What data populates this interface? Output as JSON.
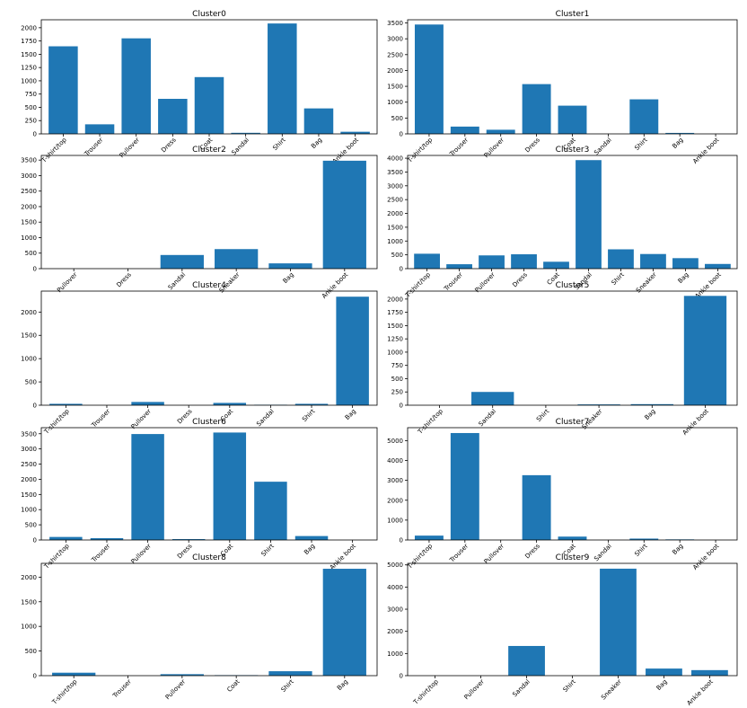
{
  "colors": {
    "bar": "#1f77b4"
  },
  "chart_data": [
    {
      "type": "bar",
      "title": "Cluster0",
      "categories": [
        "T-shirt/top",
        "Trouser",
        "Pullover",
        "Dress",
        "Coat",
        "Sandal",
        "Shirt",
        "Bag",
        "Ankle boot"
      ],
      "values": [
        1650,
        180,
        1800,
        660,
        1070,
        20,
        2080,
        480,
        40
      ],
      "ylim": [
        0,
        2150
      ],
      "yticks": [
        0,
        250,
        500,
        750,
        1000,
        1250,
        1500,
        1750,
        2000
      ]
    },
    {
      "type": "bar",
      "title": "Cluster1",
      "categories": [
        "T-shirt/top",
        "Trouser",
        "Pullover",
        "Dress",
        "Coat",
        "Sandal",
        "Shirt",
        "Bag",
        "Ankle boot"
      ],
      "values": [
        3450,
        230,
        130,
        1570,
        890,
        0,
        1090,
        30,
        0
      ],
      "ylim": [
        0,
        3600
      ],
      "yticks": [
        0,
        500,
        1000,
        1500,
        2000,
        2500,
        3000,
        3500
      ]
    },
    {
      "type": "bar",
      "title": "Cluster2",
      "categories": [
        "Pullover",
        "Dress",
        "Sandal",
        "Sneaker",
        "Bag",
        "Ankle boot"
      ],
      "values": [
        0,
        0,
        440,
        630,
        170,
        3480
      ],
      "ylim": [
        0,
        3650
      ],
      "yticks": [
        0,
        500,
        1000,
        1500,
        2000,
        2500,
        3000,
        3500
      ]
    },
    {
      "type": "bar",
      "title": "Cluster3",
      "categories": [
        "T-shirt/top",
        "Trouser",
        "Pullover",
        "Dress",
        "Coat",
        "Sandal",
        "Shirt",
        "Sneaker",
        "Bag",
        "Ankle boot"
      ],
      "values": [
        540,
        160,
        480,
        520,
        250,
        3930,
        700,
        530,
        380,
        170
      ],
      "ylim": [
        0,
        4100
      ],
      "yticks": [
        0,
        500,
        1000,
        1500,
        2000,
        2500,
        3000,
        3500,
        4000
      ]
    },
    {
      "type": "bar",
      "title": "Cluster4",
      "categories": [
        "T-shirt/top",
        "Trouser",
        "Pullover",
        "Dress",
        "Coat",
        "Sandal",
        "Shirt",
        "Bag"
      ],
      "values": [
        30,
        0,
        70,
        0,
        50,
        10,
        30,
        2330
      ],
      "ylim": [
        0,
        2450
      ],
      "yticks": [
        0,
        500,
        1000,
        1500,
        2000
      ]
    },
    {
      "type": "bar",
      "title": "Cluster5",
      "categories": [
        "T-shirt/top",
        "Sandal",
        "Shirt",
        "Sneaker",
        "Bag",
        "Ankle boot"
      ],
      "values": [
        0,
        250,
        0,
        15,
        20,
        2060
      ],
      "ylim": [
        0,
        2150
      ],
      "yticks": [
        0,
        250,
        500,
        750,
        1000,
        1250,
        1500,
        1750,
        2000
      ]
    },
    {
      "type": "bar",
      "title": "Cluster6",
      "categories": [
        "T-shirt/top",
        "Trouser",
        "Pullover",
        "Dress",
        "Coat",
        "Shirt",
        "Bag",
        "Ankle boot"
      ],
      "values": [
        100,
        60,
        3490,
        30,
        3540,
        1920,
        130,
        0
      ],
      "ylim": [
        0,
        3700
      ],
      "yticks": [
        0,
        500,
        1000,
        1500,
        2000,
        2500,
        3000,
        3500
      ]
    },
    {
      "type": "bar",
      "title": "Cluster7",
      "categories": [
        "T-shirt/top",
        "Trouser",
        "Pullover",
        "Dress",
        "Coat",
        "Sandal",
        "Shirt",
        "Bag",
        "Ankle boot"
      ],
      "values": [
        220,
        5380,
        0,
        3260,
        170,
        0,
        70,
        30,
        0
      ],
      "ylim": [
        0,
        5650
      ],
      "yticks": [
        0,
        1000,
        2000,
        3000,
        4000,
        5000
      ]
    },
    {
      "type": "bar",
      "title": "Cluster8",
      "categories": [
        "T-shirt/top",
        "Trouser",
        "Pullover",
        "Coat",
        "Shirt",
        "Bag"
      ],
      "values": [
        60,
        0,
        30,
        10,
        90,
        2170
      ],
      "ylim": [
        0,
        2280
      ],
      "yticks": [
        0,
        500,
        1000,
        1500,
        2000
      ]
    },
    {
      "type": "bar",
      "title": "Cluster9",
      "categories": [
        "T-shirt/top",
        "Pullover",
        "Sandal",
        "Shirt",
        "Sneaker",
        "Bag",
        "Ankle boot"
      ],
      "values": [
        0,
        0,
        1340,
        0,
        4830,
        320,
        250
      ],
      "ylim": [
        0,
        5070
      ],
      "yticks": [
        0,
        1000,
        2000,
        3000,
        4000,
        5000
      ]
    }
  ]
}
